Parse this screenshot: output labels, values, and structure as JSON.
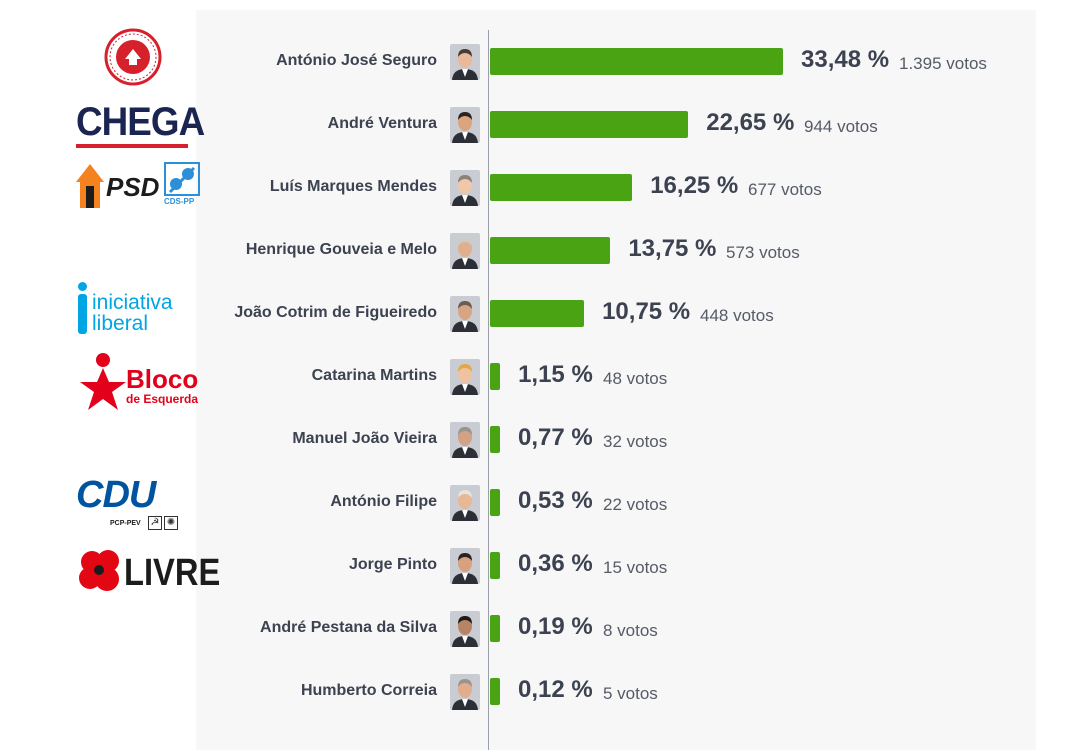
{
  "chart_data": {
    "type": "bar",
    "orientation": "horizontal",
    "bar_color": "#4aa313",
    "categories": [
      "António José Seguro",
      "André Ventura",
      "Luís Marques Mendes",
      "Henrique Gouveia e Melo",
      "João Cotrim de Figueiredo",
      "Catarina Martins",
      "Manuel João Vieira",
      "António Filipe",
      "Jorge Pinto",
      "André Pestana da Silva",
      "Humberto Correia"
    ],
    "values": [
      33.48,
      22.65,
      16.25,
      13.75,
      10.75,
      1.15,
      0.77,
      0.53,
      0.36,
      0.19,
      0.12
    ],
    "value_labels": [
      "33,48 %",
      "22,65 %",
      "16,25 %",
      "13,75 %",
      "10,75 %",
      "1,15 %",
      "0,77 %",
      "0,53 %",
      "0,36 %",
      "0,19 %",
      "0,12 %"
    ],
    "votes_labels": [
      "1.395 votos",
      "944 votos",
      "677 votos",
      "573 votos",
      "448 votos",
      "48 votos",
      "32 votos",
      "22 votos",
      "15 votos",
      "8 votos",
      "5 votos"
    ],
    "grid": false
  },
  "logos": {
    "ps_ring_text": "PARTIDO SOCIALISTA",
    "chega": "CHEGA",
    "psd": "PSD",
    "cds": "CDS-PP",
    "il_line1": "iniciativa",
    "il_line2": "liberal",
    "bloco_line1": "Bloco",
    "bloco_line2": "de Esquerda",
    "cdu": "CDU",
    "cdu_sub": "PCP-PEV",
    "livre": "LIVRE"
  },
  "colors": {
    "ps_red": "#d6202b",
    "chega_navy": "#1a2552",
    "psd_orange": "#f3821f",
    "cds_blue": "#2c8fd8",
    "il_blue": "#00a5e3",
    "bloco_red": "#e2001a",
    "cdu_blue": "#00539f",
    "livre_red": "#e30613"
  }
}
